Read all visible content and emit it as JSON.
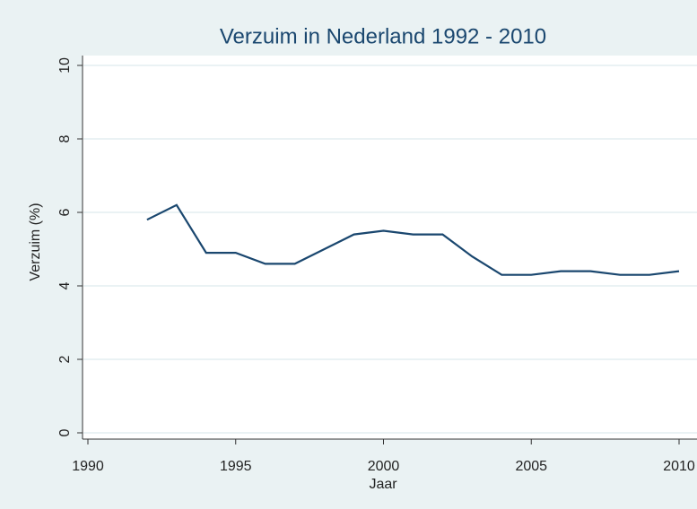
{
  "chart_data": {
    "type": "line",
    "title": "Verzuim in Nederland 1992 - 2010",
    "x_label": "Jaar",
    "y_label": "Verzuim (%)",
    "x": [
      1992,
      1993,
      1994,
      1995,
      1996,
      1997,
      1998,
      1999,
      2000,
      2001,
      2002,
      2003,
      2004,
      2005,
      2006,
      2007,
      2008,
      2009,
      2010
    ],
    "series": [
      {
        "name": "Verzuim",
        "color": "#1a476f",
        "values": [
          5.8,
          6.2,
          4.9,
          4.9,
          4.6,
          4.6,
          5.0,
          5.4,
          5.5,
          5.4,
          5.4,
          4.8,
          4.3,
          4.3,
          4.4,
          4.4,
          4.3,
          4.3,
          4.4
        ]
      }
    ],
    "xlim": [
      1990,
      2010
    ],
    "xticks": [
      1990,
      1995,
      2000,
      2005,
      2010
    ],
    "ylim": [
      0,
      10
    ],
    "yticks": [
      0,
      2,
      4,
      6,
      8,
      10
    ],
    "grid": true
  }
}
